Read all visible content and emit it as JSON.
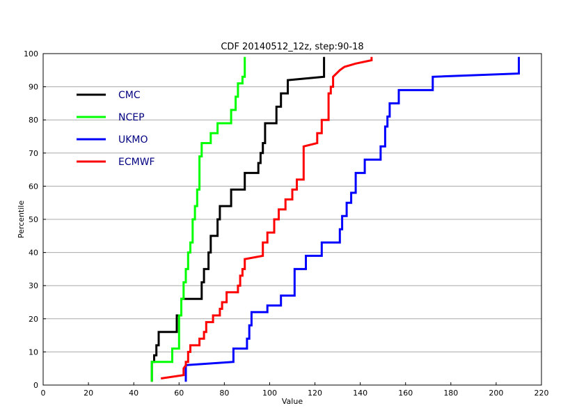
{
  "chart_data": {
    "type": "line",
    "title": "CDF 20140512_12z, step:90-18",
    "xlabel": "Value",
    "ylabel": "Percentile",
    "xlim": [
      0,
      220
    ],
    "ylim": [
      0,
      100
    ],
    "xticks": [
      0,
      20,
      40,
      60,
      80,
      100,
      120,
      140,
      160,
      180,
      200,
      220
    ],
    "yticks": [
      0,
      10,
      20,
      30,
      40,
      50,
      60,
      70,
      80,
      90,
      100
    ],
    "grid": "horizontal",
    "legend_position": "top-left",
    "series": [
      {
        "name": "CMC",
        "color": "#000000",
        "points": [
          [
            48,
            1
          ],
          [
            48,
            7
          ],
          [
            49,
            7
          ],
          [
            49,
            9
          ],
          [
            50,
            9
          ],
          [
            50,
            12
          ],
          [
            51,
            12
          ],
          [
            51,
            16
          ],
          [
            59,
            16
          ],
          [
            59,
            21
          ],
          [
            61,
            21
          ],
          [
            61,
            26
          ],
          [
            70,
            26
          ],
          [
            70,
            31
          ],
          [
            71,
            31
          ],
          [
            71,
            35
          ],
          [
            73,
            35
          ],
          [
            73,
            40
          ],
          [
            74,
            40
          ],
          [
            74,
            45
          ],
          [
            77,
            45
          ],
          [
            77,
            50
          ],
          [
            78,
            50
          ],
          [
            78,
            54
          ],
          [
            83,
            54
          ],
          [
            83,
            59
          ],
          [
            89,
            59
          ],
          [
            89,
            64
          ],
          [
            95,
            64
          ],
          [
            95,
            67
          ],
          [
            96,
            67
          ],
          [
            96,
            70
          ],
          [
            97,
            70
          ],
          [
            97,
            73
          ],
          [
            98,
            73
          ],
          [
            98,
            79
          ],
          [
            103,
            79
          ],
          [
            103,
            84
          ],
          [
            105,
            84
          ],
          [
            105,
            88
          ],
          [
            108,
            88
          ],
          [
            108,
            92
          ],
          [
            124,
            93
          ],
          [
            124,
            99
          ]
        ]
      },
      {
        "name": "NCEP",
        "color": "#00ff00",
        "points": [
          [
            48,
            1
          ],
          [
            48,
            7
          ],
          [
            57,
            7
          ],
          [
            57,
            11
          ],
          [
            60,
            11
          ],
          [
            60,
            21
          ],
          [
            61,
            21
          ],
          [
            61,
            26
          ],
          [
            62,
            26
          ],
          [
            62,
            31
          ],
          [
            63,
            31
          ],
          [
            63,
            35
          ],
          [
            64,
            35
          ],
          [
            64,
            40
          ],
          [
            65,
            40
          ],
          [
            65,
            43
          ],
          [
            66,
            43
          ],
          [
            66,
            50
          ],
          [
            67,
            50
          ],
          [
            67,
            54
          ],
          [
            68,
            54
          ],
          [
            68,
            59
          ],
          [
            69,
            59
          ],
          [
            69,
            69
          ],
          [
            70,
            69
          ],
          [
            70,
            73
          ],
          [
            74,
            73
          ],
          [
            74,
            76
          ],
          [
            77,
            76
          ],
          [
            77,
            79
          ],
          [
            83,
            79
          ],
          [
            83,
            83
          ],
          [
            85,
            83
          ],
          [
            85,
            87
          ],
          [
            86,
            87
          ],
          [
            86,
            91
          ],
          [
            88,
            91
          ],
          [
            88,
            93
          ],
          [
            89,
            93
          ],
          [
            89,
            99
          ]
        ]
      },
      {
        "name": "UKMO",
        "color": "#0000ff",
        "points": [
          [
            63,
            1
          ],
          [
            63,
            6
          ],
          [
            84,
            7
          ],
          [
            84,
            11
          ],
          [
            90,
            11
          ],
          [
            90,
            14
          ],
          [
            91,
            14
          ],
          [
            91,
            18
          ],
          [
            92,
            18
          ],
          [
            92,
            22
          ],
          [
            99,
            22
          ],
          [
            99,
            24
          ],
          [
            105,
            24
          ],
          [
            105,
            27
          ],
          [
            111,
            27
          ],
          [
            111,
            31
          ],
          [
            111,
            35
          ],
          [
            116,
            35
          ],
          [
            116,
            39
          ],
          [
            123,
            39
          ],
          [
            123,
            43
          ],
          [
            131,
            43
          ],
          [
            131,
            47
          ],
          [
            132,
            47
          ],
          [
            132,
            51
          ],
          [
            134,
            51
          ],
          [
            134,
            55
          ],
          [
            136,
            55
          ],
          [
            136,
            58
          ],
          [
            138,
            58
          ],
          [
            138,
            64
          ],
          [
            142,
            64
          ],
          [
            142,
            68
          ],
          [
            149,
            68
          ],
          [
            149,
            72
          ],
          [
            151,
            72
          ],
          [
            151,
            78
          ],
          [
            152,
            78
          ],
          [
            152,
            81
          ],
          [
            153,
            81
          ],
          [
            153,
            85
          ],
          [
            157,
            85
          ],
          [
            157,
            89
          ],
          [
            172,
            89
          ],
          [
            172,
            93
          ],
          [
            210,
            94
          ],
          [
            210,
            99
          ]
        ]
      },
      {
        "name": "ECMWF",
        "color": "#ff0000",
        "points": [
          [
            52,
            2
          ],
          [
            62,
            3
          ],
          [
            62,
            5
          ],
          [
            63,
            6
          ],
          [
            63,
            7
          ],
          [
            64,
            7
          ],
          [
            64,
            10
          ],
          [
            65,
            10
          ],
          [
            65,
            12
          ],
          [
            69,
            12
          ],
          [
            69,
            14
          ],
          [
            71,
            14
          ],
          [
            71,
            16
          ],
          [
            72,
            16
          ],
          [
            72,
            19
          ],
          [
            75,
            19
          ],
          [
            75,
            21
          ],
          [
            78,
            21
          ],
          [
            78,
            23
          ],
          [
            79,
            23
          ],
          [
            79,
            25
          ],
          [
            81,
            25
          ],
          [
            81,
            28
          ],
          [
            86,
            28
          ],
          [
            86,
            30
          ],
          [
            87,
            30
          ],
          [
            87,
            33
          ],
          [
            88,
            33
          ],
          [
            88,
            35
          ],
          [
            89,
            35
          ],
          [
            89,
            38
          ],
          [
            97,
            39
          ],
          [
            97,
            43
          ],
          [
            99,
            43
          ],
          [
            99,
            46
          ],
          [
            102,
            46
          ],
          [
            102,
            50
          ],
          [
            104,
            50
          ],
          [
            104,
            53
          ],
          [
            107,
            53
          ],
          [
            107,
            56
          ],
          [
            110,
            56
          ],
          [
            110,
            59
          ],
          [
            112,
            59
          ],
          [
            112,
            62
          ],
          [
            115,
            62
          ],
          [
            115,
            72
          ],
          [
            121,
            73
          ],
          [
            121,
            76
          ],
          [
            123,
            76
          ],
          [
            123,
            80
          ],
          [
            126,
            80
          ],
          [
            126,
            88
          ],
          [
            127,
            88
          ],
          [
            127,
            90
          ],
          [
            128,
            90
          ],
          [
            128,
            93
          ],
          [
            131,
            95
          ],
          [
            133,
            96
          ],
          [
            138,
            97
          ],
          [
            145,
            98
          ],
          [
            145,
            99
          ]
        ]
      }
    ]
  }
}
